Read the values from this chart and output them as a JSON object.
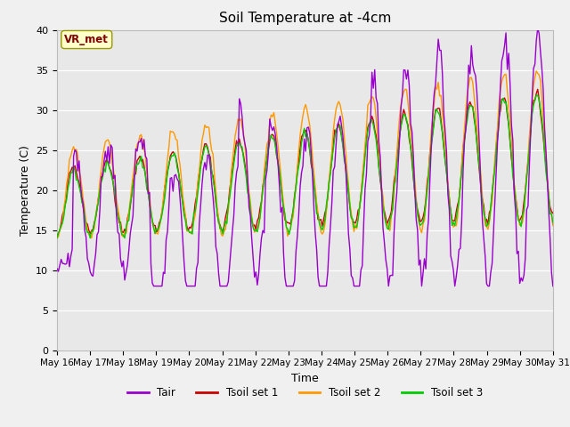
{
  "title": "Soil Temperature at -4cm",
  "xlabel": "Time",
  "ylabel": "Temperature (C)",
  "ylim": [
    0,
    40
  ],
  "yticks": [
    0,
    5,
    10,
    15,
    20,
    25,
    30,
    35,
    40
  ],
  "x_labels": [
    "May 16",
    "May 17",
    "May 18",
    "May 19",
    "May 20",
    "May 21",
    "May 22",
    "May 23",
    "May 24",
    "May 25",
    "May 26",
    "May 27",
    "May 28",
    "May 29",
    "May 30",
    "May 31"
  ],
  "colors": {
    "Tair": "#9900cc",
    "Tsoil1": "#cc0000",
    "Tsoil2": "#ff9900",
    "Tsoil3": "#00cc00"
  },
  "legend_labels": [
    "Tair",
    "Tsoil set 1",
    "Tsoil set 2",
    "Tsoil set 3"
  ],
  "annotation_text": "VR_met",
  "annotation_color": "#800000",
  "annotation_bg": "#ffffcc",
  "plot_bg_color": "#e8e8e8",
  "fig_bg_color": "#f0f0f0",
  "grid_color": "#ffffff",
  "title_fontsize": 11,
  "axis_label_fontsize": 9,
  "tick_fontsize": 8,
  "line_width": 1.0
}
